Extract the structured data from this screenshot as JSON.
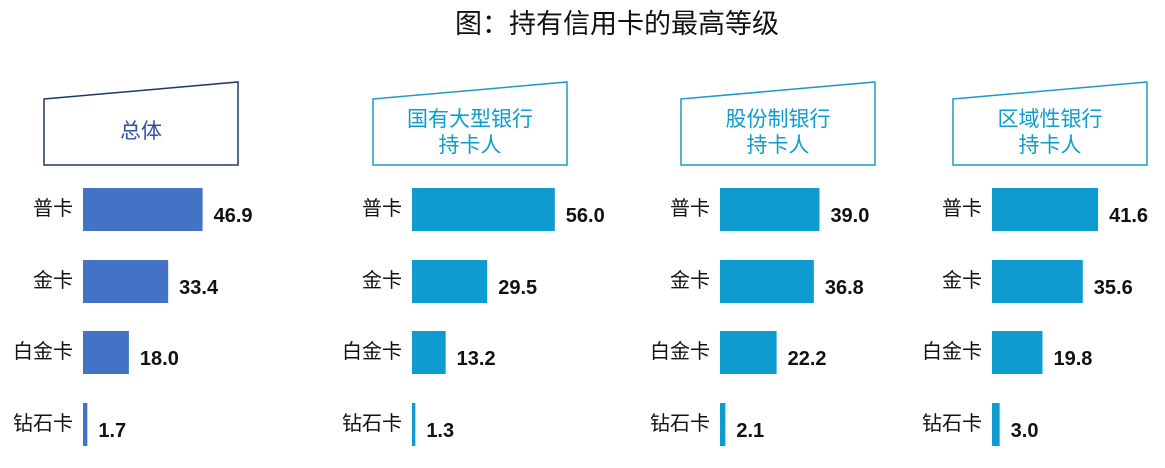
{
  "title": "图：持有信用卡的最高等级",
  "chart_data": [
    {
      "type": "bar",
      "header_lines": [
        "总体"
      ],
      "categories": [
        "普卡",
        "金卡",
        "白金卡",
        "钻石卡"
      ],
      "values": [
        46.9,
        33.4,
        18.0,
        1.7
      ],
      "value_labels": [
        "46.9",
        "33.4",
        "18.0",
        "1.7"
      ],
      "color": "#4472C4"
    },
    {
      "type": "bar",
      "header_lines": [
        "国有大型银行",
        "持卡人"
      ],
      "categories": [
        "普卡",
        "金卡",
        "白金卡",
        "钻石卡"
      ],
      "values": [
        56.0,
        29.5,
        13.2,
        1.3
      ],
      "value_labels": [
        "56.0",
        "29.5",
        "13.2",
        "1.3"
      ],
      "color": "#0E9BCF"
    },
    {
      "type": "bar",
      "header_lines": [
        "股份制银行",
        "持卡人"
      ],
      "categories": [
        "普卡",
        "金卡",
        "白金卡",
        "钻石卡"
      ],
      "values": [
        39.0,
        36.8,
        22.2,
        2.1
      ],
      "value_labels": [
        "39.0",
        "36.8",
        "22.2",
        "2.1"
      ],
      "color": "#0E9BCF"
    },
    {
      "type": "bar",
      "header_lines": [
        "区域性银行",
        "持卡人"
      ],
      "categories": [
        "普卡",
        "金卡",
        "白金卡",
        "钻石卡"
      ],
      "values": [
        41.6,
        35.6,
        19.8,
        3.0
      ],
      "value_labels": [
        "41.6",
        "35.6",
        "19.8",
        "3.0"
      ],
      "color": "#0E9BCF"
    }
  ]
}
